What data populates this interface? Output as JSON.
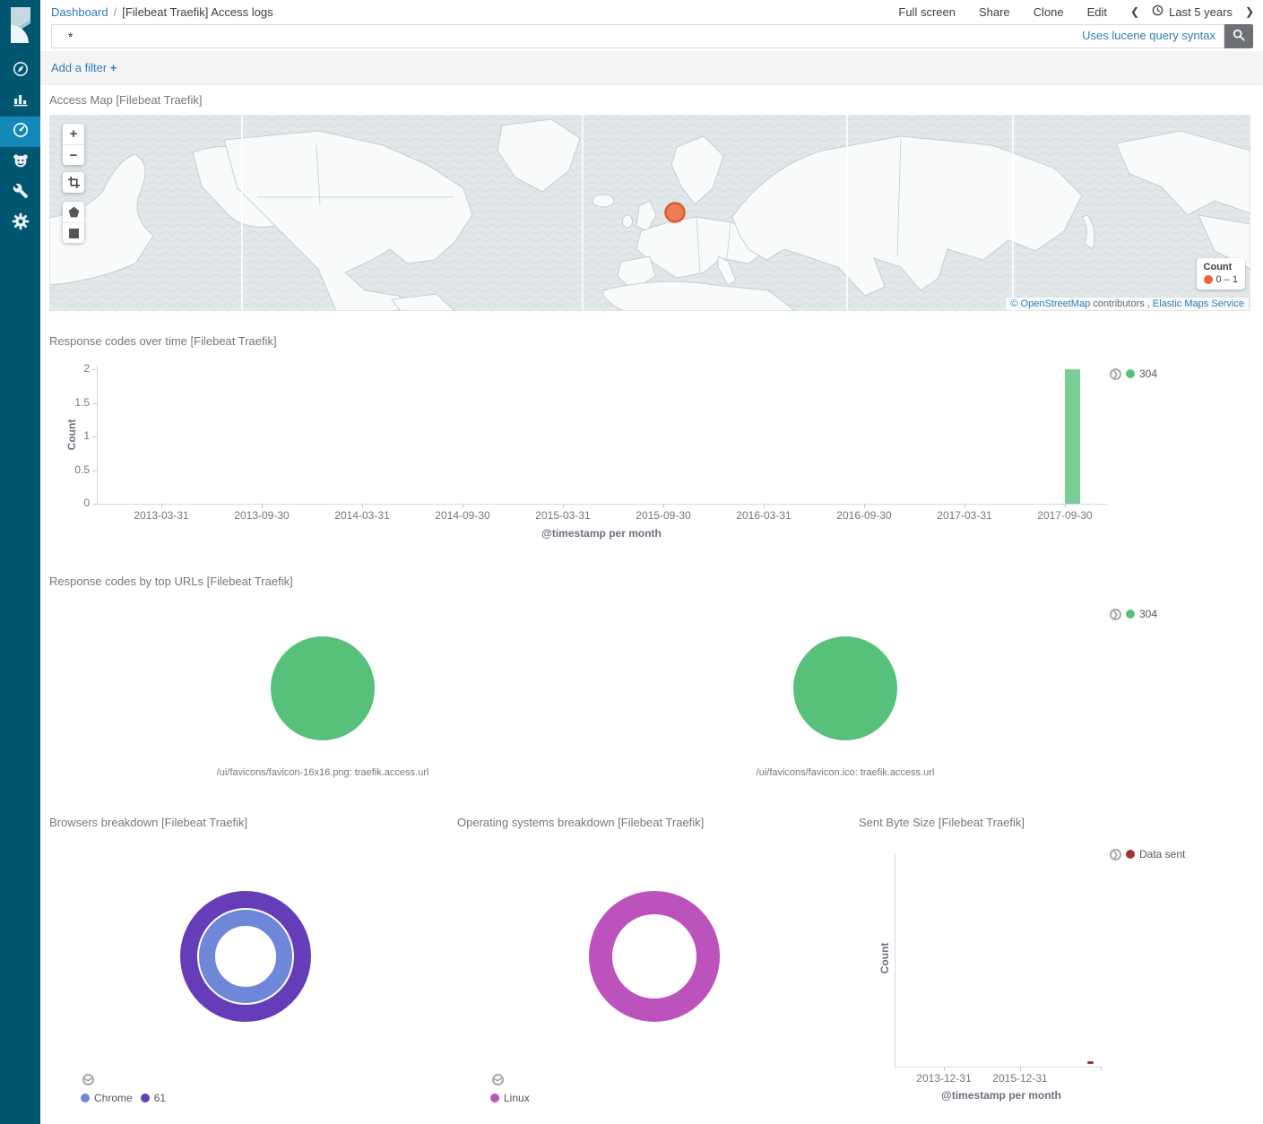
{
  "sidebar": {
    "items": [
      {
        "name": "discover"
      },
      {
        "name": "visualize"
      },
      {
        "name": "dashboard",
        "selected": true
      },
      {
        "name": "timelion"
      },
      {
        "name": "dev-tools"
      },
      {
        "name": "management"
      }
    ]
  },
  "header": {
    "breadcrumb": {
      "root": "Dashboard",
      "separator": "/",
      "current": "[Filebeat Traefik] Access logs"
    },
    "actions": [
      "Full screen",
      "Share",
      "Clone",
      "Edit"
    ],
    "time_picker": {
      "label": "Last 5 years"
    }
  },
  "query_bar": {
    "value": "*",
    "hint": "Uses lucene query syntax"
  },
  "filter_bar": {
    "label": "Add a filter",
    "plus": "+"
  },
  "panels": {
    "access_map": {
      "title": "Access Map [Filebeat Traefik]",
      "controls": {
        "zoom_in": "+",
        "zoom_out": "−"
      },
      "legend": {
        "title": "Count",
        "range": "0 – 1",
        "color": "#e9653a"
      },
      "marker": {
        "color": "#f0744a",
        "border": "#d9531e"
      },
      "attribution": {
        "link_osm": "© OpenStreetMap",
        "middle": " contributors , ",
        "link_ems": "Elastic Maps Service"
      }
    },
    "response_codes": {
      "title": "Response codes over time [Filebeat Traefik]"
    },
    "top_urls": {
      "title": "Response codes by top URLs [Filebeat Traefik]"
    },
    "browsers": {
      "title": "Browsers breakdown [Filebeat Traefik]"
    },
    "os": {
      "title": "Operating systems breakdown [Filebeat Traefik]"
    },
    "sent_bytes": {
      "title": "Sent Byte Size [Filebeat Traefik]"
    }
  },
  "chart_data": [
    {
      "id": "response_codes_over_time",
      "type": "bar",
      "title": "Response codes over time [Filebeat Traefik]",
      "xlabel": "@timestamp per month",
      "ylabel": "Count",
      "ylim": [
        0,
        2
      ],
      "yticks": [
        0,
        0.5,
        1,
        1.5,
        2
      ],
      "categories": [
        "2013-03-31",
        "2013-09-30",
        "2014-03-31",
        "2014-09-30",
        "2015-03-31",
        "2015-09-30",
        "2016-03-31",
        "2016-09-30",
        "2017-03-31",
        "2017-09-30"
      ],
      "series": [
        {
          "name": "304",
          "color": "#57c17b",
          "values": [
            0,
            0,
            0,
            0,
            0,
            0,
            0,
            0,
            0,
            2
          ]
        }
      ],
      "legend_position": "right",
      "grid": false
    },
    {
      "id": "response_codes_by_top_urls",
      "type": "pie",
      "title": "Response codes by top URLs [Filebeat Traefik]",
      "legend": [
        "304"
      ],
      "pies": [
        {
          "label": "/ui/favicons/favicon-16x16.png: traefik.access.url",
          "slices": [
            {
              "name": "304",
              "value": 100,
              "color": "#57c17b"
            }
          ]
        },
        {
          "label": "/ui/favicons/favicon.ico: traefik.access.url",
          "slices": [
            {
              "name": "304",
              "value": 100,
              "color": "#57c17b"
            }
          ]
        }
      ]
    },
    {
      "id": "browsers_breakdown",
      "type": "pie",
      "title": "Browsers breakdown [Filebeat Traefik]",
      "rings": [
        {
          "name": "Chrome",
          "value": 100,
          "color": "#6f87d8",
          "position": "inner"
        },
        {
          "name": "61",
          "value": 100,
          "color": "#663db8",
          "position": "outer"
        }
      ]
    },
    {
      "id": "os_breakdown",
      "type": "pie",
      "title": "Operating systems breakdown [Filebeat Traefik]",
      "rings": [
        {
          "name": "Linux",
          "value": 100,
          "color": "#bc52bc",
          "position": "outer"
        }
      ]
    },
    {
      "id": "sent_byte_size",
      "type": "line",
      "title": "Sent Byte Size [Filebeat Traefik]",
      "xlabel": "@timestamp per month",
      "ylabel": "Count",
      "xticks": [
        "2013-12-31",
        "2015-12-31"
      ],
      "series": [
        {
          "name": "Data sent",
          "color": "#9e3533",
          "points": [
            {
              "x": "2017-10",
              "y": 0
            }
          ]
        }
      ],
      "grid": false
    }
  ]
}
